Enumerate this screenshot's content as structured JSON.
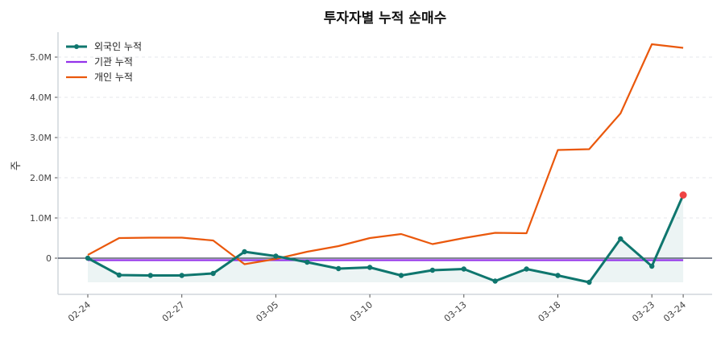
{
  "chart_data": {
    "type": "line",
    "title": "투자자별 누적 순매수",
    "ylabel": "주",
    "xlabel": "",
    "ylim": [
      -0.9,
      5.62
    ],
    "y_unit": "M",
    "yticks": [
      0,
      1,
      2,
      3,
      4,
      5
    ],
    "ytick_labels": [
      "0",
      "1.0M",
      "2.0M",
      "3.0M",
      "4.0M",
      "5.0M"
    ],
    "grid": "horizontal dashed",
    "legend_placement": "top-left",
    "xtick_positions": [
      0,
      3,
      6,
      9,
      12,
      15,
      18,
      19
    ],
    "xtick_labels": [
      "02-24",
      "02-27",
      "03-05",
      "03-10",
      "03-13",
      "03-18",
      "03-23",
      "03-24"
    ],
    "series": [
      {
        "name": "외국인 누적",
        "color": "#0f766e",
        "markers": true,
        "fill": true,
        "values": [
          0,
          -0.42,
          -0.43,
          -0.43,
          -0.38,
          0.16,
          0.05,
          -0.1,
          -0.26,
          -0.23,
          -0.43,
          -0.3,
          -0.27,
          -0.57,
          -0.27,
          -0.43,
          -0.6,
          0.48,
          -0.2,
          1.57
        ]
      },
      {
        "name": "기관 누적",
        "color": "#9333ea",
        "markers": false,
        "values": [
          -0.05,
          -0.05,
          -0.05,
          -0.05,
          -0.05,
          -0.05,
          -0.05,
          -0.05,
          -0.05,
          -0.05,
          -0.05,
          -0.05,
          -0.05,
          -0.05,
          -0.05,
          -0.05,
          -0.05,
          -0.05,
          -0.05,
          -0.05
        ]
      },
      {
        "name": "개인 누적",
        "color": "#ea580c",
        "markers": false,
        "values": [
          0.08,
          0.5,
          0.51,
          0.51,
          0.44,
          -0.15,
          -0.02,
          0.16,
          0.3,
          0.5,
          0.6,
          0.35,
          0.5,
          0.63,
          0.62,
          2.69,
          2.71,
          3.6,
          5.32,
          5.23
        ]
      }
    ],
    "highlight_last_point_color": "#ef4444"
  }
}
